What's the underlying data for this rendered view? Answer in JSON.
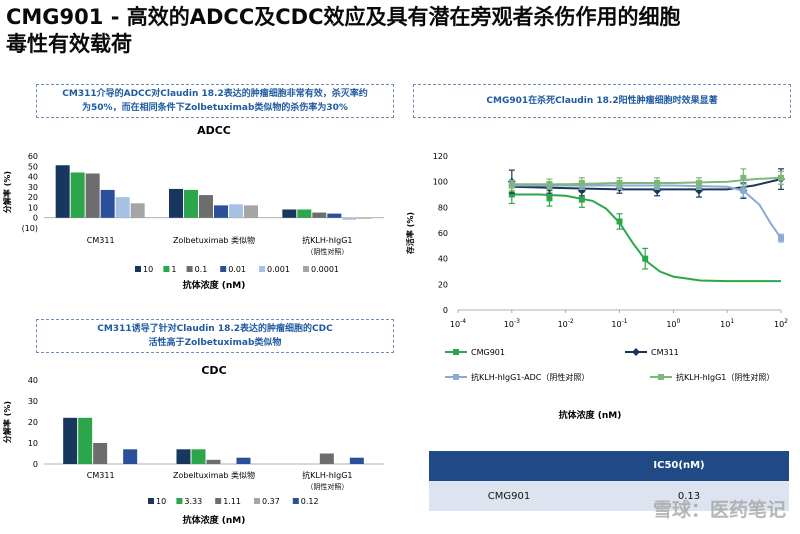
{
  "title": {
    "line1": "CMG901 - 高效的ADCC及CDC效应及具有潜在旁观者杀伤作用的细胞",
    "line2": "毒性有效载荷"
  },
  "boxes": {
    "adcc": "CM311介导的ADCC对Claudin 18.2表达的肿瘤细胞非常有效，杀灭率约\n为50%，而在相同条件下Zolbetuximab类似物的杀伤率为30%",
    "cdc": "CM311诱导了针对Claudin 18.2表达的肿瘤细胞的CDC\n活性高于Zolbetuximab类似物",
    "cmg901": "CMG901在杀死Claudin 18.2阳性肿瘤细胞时效果显著"
  },
  "colors": {
    "navy": "#17375e",
    "green": "#2ca64b",
    "gray": "#6d6d6d",
    "blue": "#2b4f9a",
    "lightblue": "#a6c1e4",
    "lightgray": "#a5a5a5"
  },
  "chart_data": [
    {
      "type": "bar",
      "title": "ADCC",
      "ylabel": "分解率 (%)",
      "xlabel": "抗体浓度 (nM)",
      "ylim": [
        -10,
        60
      ],
      "yticks": [
        "60",
        "50",
        "40",
        "30",
        "20",
        "10",
        "0",
        "(10)"
      ],
      "categories": [
        "CM311",
        "Zolbetuximab 类似物",
        "抗KLH-hIgG1"
      ],
      "category_sublabels": [
        "",
        "",
        "（阴性对照）"
      ],
      "series": [
        {
          "name": "10",
          "color": "#17375e",
          "values": [
            51,
            28,
            8
          ]
        },
        {
          "name": "1",
          "color": "#2ca64b",
          "values": [
            44,
            27,
            8
          ]
        },
        {
          "name": "0.1",
          "color": "#6d6d6d",
          "values": [
            43,
            22,
            5
          ]
        },
        {
          "name": "0.01",
          "color": "#2b4f9a",
          "values": [
            27,
            12,
            4
          ]
        },
        {
          "name": "0.001",
          "color": "#a6c1e4",
          "values": [
            20,
            13,
            -2
          ]
        },
        {
          "name": "0.0001",
          "color": "#a5a5a5",
          "values": [
            14,
            12,
            -1
          ]
        }
      ]
    },
    {
      "type": "bar",
      "title": "CDC",
      "ylabel": "分解率 (%)",
      "xlabel": "抗体浓度 (nM)",
      "ylim": [
        0,
        40
      ],
      "yticks": [
        "40",
        "30",
        "20",
        "10",
        "0"
      ],
      "categories": [
        "CM311",
        "Zobeltuximab 类似物",
        "抗KLH-hIgG1"
      ],
      "category_sublabels": [
        "",
        "",
        "（阴性对照）"
      ],
      "series": [
        {
          "name": "10",
          "color": "#17375e",
          "values": [
            22,
            7,
            0
          ]
        },
        {
          "name": "3.33",
          "color": "#2ca64b",
          "values": [
            22,
            7,
            0
          ]
        },
        {
          "name": "1.11",
          "color": "#6d6d6d",
          "values": [
            10,
            2,
            5
          ]
        },
        {
          "name": "0.37",
          "color": "#a5a5a5",
          "values": [
            0,
            0,
            0
          ]
        },
        {
          "name": "0.12",
          "color": "#2b4f9a",
          "values": [
            7,
            3,
            3
          ]
        }
      ]
    },
    {
      "type": "line",
      "title": "",
      "ylabel": "存活率 (%)",
      "xlabel": "抗体浓度 (nM)",
      "xscale": "log",
      "xlim": [
        -4,
        2
      ],
      "xticks": [
        -4,
        -3,
        -2,
        -1,
        0,
        1,
        2
      ],
      "ylim": [
        0,
        120
      ],
      "yticks": [
        0,
        20,
        40,
        60,
        80,
        100,
        120
      ],
      "series": [
        {
          "name": "CMG901",
          "color": "#2ca64b",
          "marker": "square",
          "x": [
            0.001,
            0.005,
            0.02,
            0.1,
            0.3
          ],
          "y": [
            90,
            87,
            86,
            69,
            40
          ],
          "err": [
            7,
            6,
            6,
            6,
            8
          ],
          "curve_x": [
            -3,
            -2.5,
            -2,
            -1.5,
            -1.25,
            -1,
            -0.75,
            -0.5,
            -0.25,
            0,
            0.5,
            1,
            1.5,
            2
          ],
          "curve_y": [
            90,
            90,
            89,
            85,
            79,
            68,
            52,
            38,
            30,
            26,
            23,
            22.5,
            22.5,
            22.5
          ]
        },
        {
          "name": "CM311",
          "color": "#17375e",
          "marker": "diamond",
          "x": [
            0.001,
            0.005,
            0.02,
            0.1,
            0.5,
            3,
            20,
            100
          ],
          "y": [
            100,
            95,
            93,
            95,
            93,
            93,
            93,
            102
          ],
          "err": [
            9,
            4,
            4,
            4,
            4,
            5,
            6,
            8
          ],
          "curve_x": [
            -3,
            -2,
            -1,
            0,
            1,
            1.5,
            2
          ],
          "curve_y": [
            96,
            95,
            94,
            94,
            94,
            97,
            102
          ]
        },
        {
          "name": "抗KLH-hIgG1-ADC（阴性对照）",
          "color": "#8da9d4",
          "marker": "square",
          "x": [
            0.001,
            0.005,
            0.02,
            0.1,
            0.5,
            3,
            20,
            100
          ],
          "y": [
            98,
            97,
            97,
            97,
            97,
            97,
            93,
            56
          ],
          "err": [
            3,
            3,
            3,
            3,
            3,
            3,
            5,
            3
          ],
          "curve_x": [
            -3,
            -2,
            -1,
            0,
            1,
            1.3,
            1.6,
            1.8,
            2
          ],
          "curve_y": [
            97,
            97,
            97,
            97,
            96,
            93,
            82,
            68,
            56
          ]
        },
        {
          "name": "抗KLH-hIgG1（阴性对照）",
          "color": "#7fb77a",
          "marker": "square",
          "x": [
            0.001,
            0.005,
            0.02,
            0.1,
            0.5,
            3,
            20,
            100
          ],
          "y": [
            97,
            98,
            99,
            99,
            99,
            99,
            103,
            103
          ],
          "err": [
            4,
            4,
            4,
            4,
            4,
            4,
            7,
            5
          ],
          "curve_x": [
            -3,
            -2,
            -1,
            0,
            1,
            1.5,
            2
          ],
          "curve_y": [
            98,
            98,
            99,
            99,
            100,
            102,
            103
          ]
        }
      ]
    },
    {
      "type": "table",
      "columns": [
        "",
        "IC50(nM)"
      ],
      "rows": [
        [
          "CMG901",
          "0.13"
        ]
      ]
    }
  ],
  "watermark": "雪球：医药笔记"
}
